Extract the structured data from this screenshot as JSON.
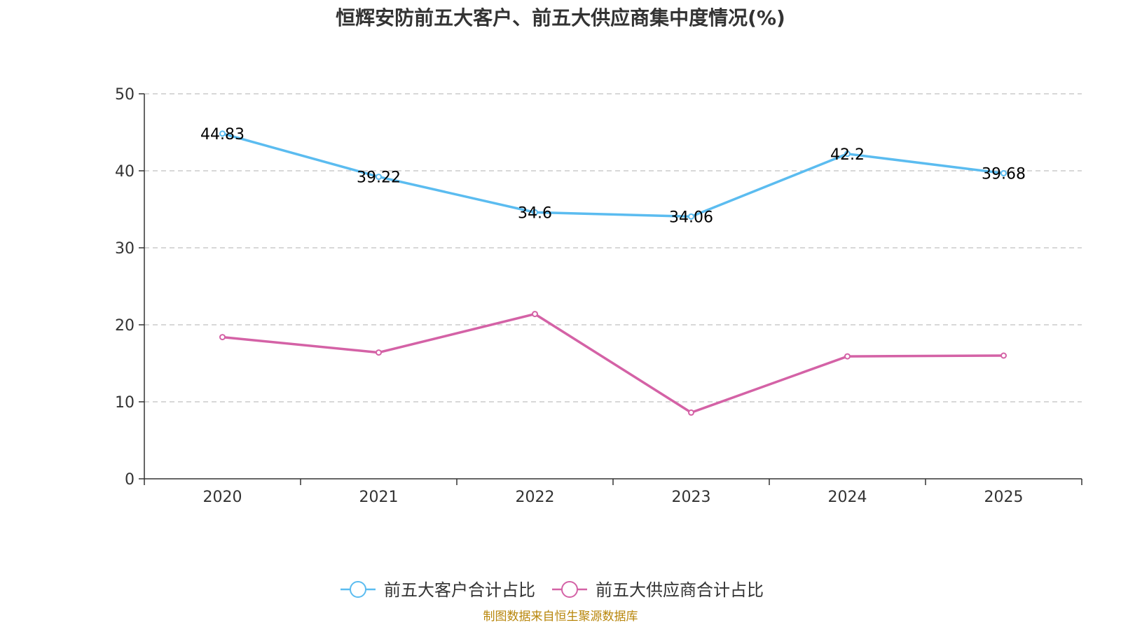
{
  "chart_data": {
    "type": "line",
    "title": "恒辉安防前五大客户、前五大供应商集中度情况(%)",
    "categories": [
      "2020",
      "2021",
      "2022",
      "2023",
      "2024",
      "2025"
    ],
    "series": [
      {
        "name": "前五大客户合计占比",
        "color": "#5bbcf0",
        "values": [
          44.83,
          39.22,
          34.6,
          34.06,
          42.2,
          39.68
        ],
        "show_labels": true
      },
      {
        "name": "前五大供应商合计占比",
        "color": "#d462a6",
        "values": [
          18.4,
          16.4,
          21.4,
          8.6,
          15.9,
          16.0
        ],
        "show_labels": false
      }
    ],
    "yticks": [
      "0",
      "10",
      "20",
      "30",
      "40",
      "50"
    ],
    "ylim": [
      0,
      50
    ],
    "grid": true,
    "legend_position": "bottom-center",
    "source": "制图数据来自恒生聚源数据库"
  }
}
